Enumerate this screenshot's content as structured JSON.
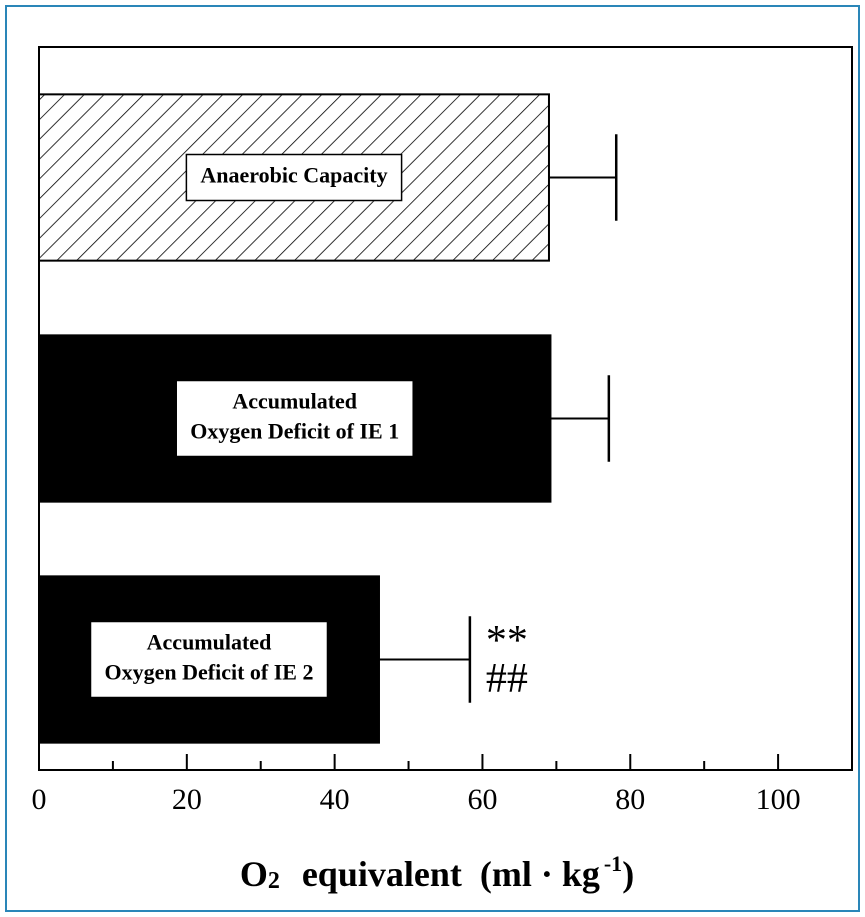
{
  "chart_data": {
    "type": "barh",
    "categories": [
      [
        "Anaerobic Capacity"
      ],
      [
        "Accumulated",
        "Oxygen Deficit of IE 1"
      ],
      [
        "Accumulated",
        "Oxygen Deficit of IE 2"
      ]
    ],
    "values": [
      69.0,
      69.2,
      46.0
    ],
    "errors": [
      9.1,
      7.9,
      12.3
    ],
    "fills": [
      "hatch",
      "#000000",
      "#000000"
    ],
    "xlim": [
      0,
      110
    ],
    "xticks": [
      0,
      20,
      40,
      60,
      80,
      100
    ],
    "minor_xticks": [
      10,
      30,
      50,
      70,
      90
    ],
    "xlabel_parts": [
      "O",
      "2",
      "equivalent",
      "(ml · kg",
      "-1",
      ")"
    ],
    "annotations": [
      {
        "category": 2,
        "lines": [
          "**",
          "##"
        ]
      }
    ]
  }
}
